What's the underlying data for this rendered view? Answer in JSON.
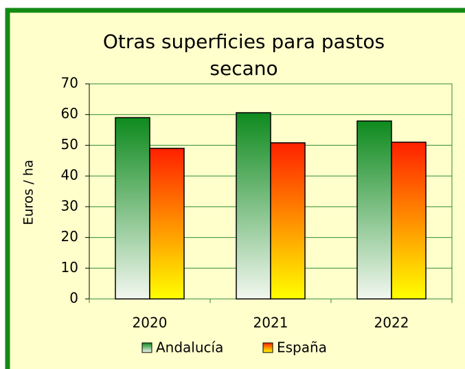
{
  "chart_data": {
    "type": "bar",
    "title": [
      "Otras superficies para pastos",
      "secano"
    ],
    "y_label": "Euros / ha",
    "categories": [
      "2020",
      "2021",
      "2022"
    ],
    "series": [
      {
        "name": "Andalucía",
        "color": "#0e8a1e",
        "gradient": [
          "#0e8a1e",
          "#f2f7ef"
        ],
        "values": [
          59,
          60.6,
          57.9
        ]
      },
      {
        "name": "España",
        "color": "#ff2000",
        "gradient": [
          "#ff2000",
          "#ffff00"
        ],
        "values": [
          49,
          50.8,
          51
        ]
      }
    ],
    "ylim": [
      0,
      70
    ],
    "yticks": [
      0,
      10,
      20,
      30,
      40,
      50,
      60,
      70
    ],
    "grid": true,
    "legend": "bottom"
  }
}
